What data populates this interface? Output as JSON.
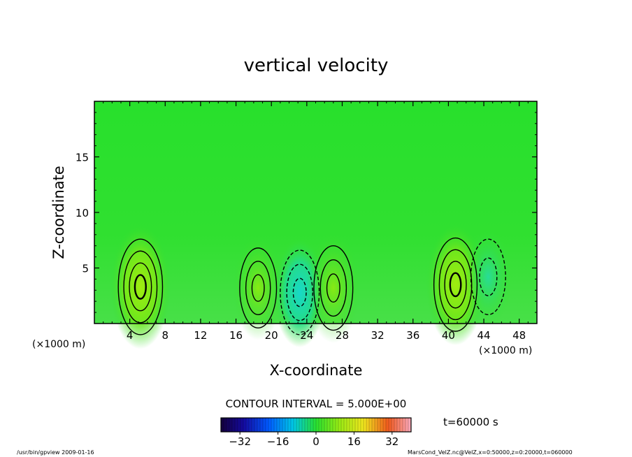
{
  "chart_data": {
    "type": "heatmap",
    "title": "vertical velocity",
    "xlabel": "X-coordinate",
    "ylabel": "Z-coordinate",
    "x_unit_label": "(×1000 m)",
    "y_unit_label": "(×1000 m)",
    "xlim": [
      0,
      50
    ],
    "ylim": [
      0,
      20
    ],
    "x_ticks": [
      4,
      8,
      12,
      16,
      20,
      24,
      28,
      32,
      36,
      40,
      44,
      48
    ],
    "y_ticks": [
      5,
      10,
      15
    ],
    "contour_interval_text": "CONTOUR INTERVAL = 5.000E+00",
    "time_label": "t=60000 s",
    "colorbar": {
      "range": [
        -40,
        40
      ],
      "ticks": [
        -32,
        -16,
        0,
        16,
        32
      ]
    },
    "features": [
      {
        "kind": "max",
        "x": 5.2,
        "z": 3.3,
        "value": 15
      },
      {
        "kind": "max",
        "x": 18.5,
        "z": 3.2,
        "value": 8
      },
      {
        "kind": "min",
        "x": 23.2,
        "z": 2.8,
        "value": -10
      },
      {
        "kind": "max",
        "x": 27.0,
        "z": 3.2,
        "value": 10
      },
      {
        "kind": "max",
        "x": 40.8,
        "z": 3.5,
        "value": 14
      },
      {
        "kind": "min",
        "x": 44.5,
        "z": 4.2,
        "value": -6
      }
    ]
  },
  "footer": {
    "left": "/usr/bin/gpview   2009-01-16",
    "right": "MarsCond_VelZ.nc@VelZ,x=0:50000,z=0:20000,t=060000"
  }
}
